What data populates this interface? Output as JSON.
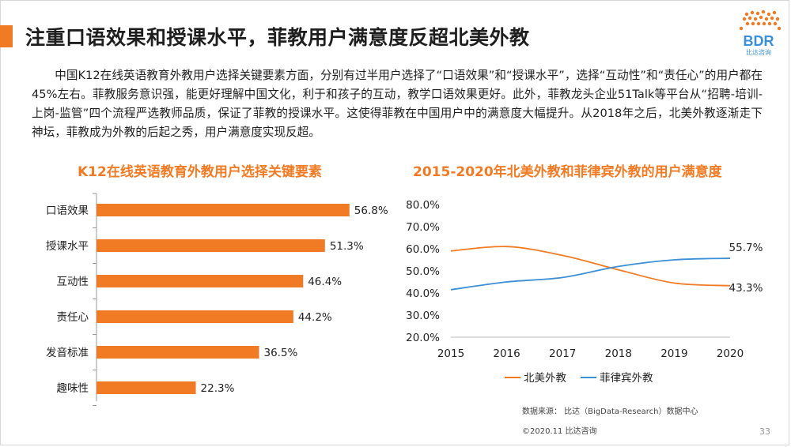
{
  "header": {
    "title": "注重口语效果和授课水平，菲教用户满意度反超北美外教"
  },
  "logo": {
    "text": "BDR",
    "subtext": "比达咨询",
    "color_orange": "#f07b24",
    "color_blue": "#3a8fd6"
  },
  "intro": {
    "text": "中国K12在线英语教育外教用户选择关键要素方面，分别有过半用户选择了“口语效果”和“授课水平”，选择“互动性”和“责任心”的用户都在45%左右。菲教服务意识强，能更好理解中国文化，利于和孩子的互动，教学口语效果更好。此外，菲教龙头企业51Talk等平台从“招聘-培训-上岗-监管”四个流程严选教师品质，保证了菲教的授课水平。这使得菲教在中国用户中的满意度大幅提升。从2018年之后，北美外教逐渐走下神坛，菲教成为外教的后起之秀，用户满意度实现反超。"
  },
  "chart_data": [
    {
      "type": "bar",
      "orientation": "horizontal",
      "title": "K12在线英语教育外教用户选择关键要素",
      "categories": [
        "口语效果",
        "授课水平",
        "互动性",
        "责任心",
        "发音标准",
        "趣味性"
      ],
      "values": [
        56.8,
        51.3,
        46.4,
        44.2,
        36.5,
        22.3
      ],
      "value_labels": [
        "56.8%",
        "51.3%",
        "46.4%",
        "44.2%",
        "36.5%",
        "22.3%"
      ],
      "xlim": [
        0,
        60
      ],
      "color": "#f07b24"
    },
    {
      "type": "line",
      "title": "2015-2020年北美外教和菲律宾外教的用户满意度",
      "x": [
        "2015",
        "2016",
        "2017",
        "2018",
        "2019",
        "2020"
      ],
      "ylim": [
        20,
        80
      ],
      "yticks": [
        20,
        30,
        40,
        50,
        60,
        70,
        80
      ],
      "ytick_labels": [
        "20.0%",
        "30.0%",
        "40.0%",
        "50.0%",
        "60.0%",
        "70.0%",
        "80.0%"
      ],
      "series": [
        {
          "name": "北美外教",
          "values": [
            59.0,
            61.0,
            57.0,
            50.5,
            44.5,
            43.3
          ],
          "color": "#f07b24",
          "end_label": "43.3%"
        },
        {
          "name": "菲律宾外教",
          "values": [
            41.5,
            45.0,
            47.0,
            52.0,
            55.0,
            55.7
          ],
          "color": "#3a8fd6",
          "end_label": "55.7%"
        }
      ],
      "legend": "bottom"
    }
  ],
  "footer": {
    "source": "数据来源： 比达（BigData-Research）数据中心",
    "copyright": "©2020.11  比达咨询",
    "page": "33"
  }
}
